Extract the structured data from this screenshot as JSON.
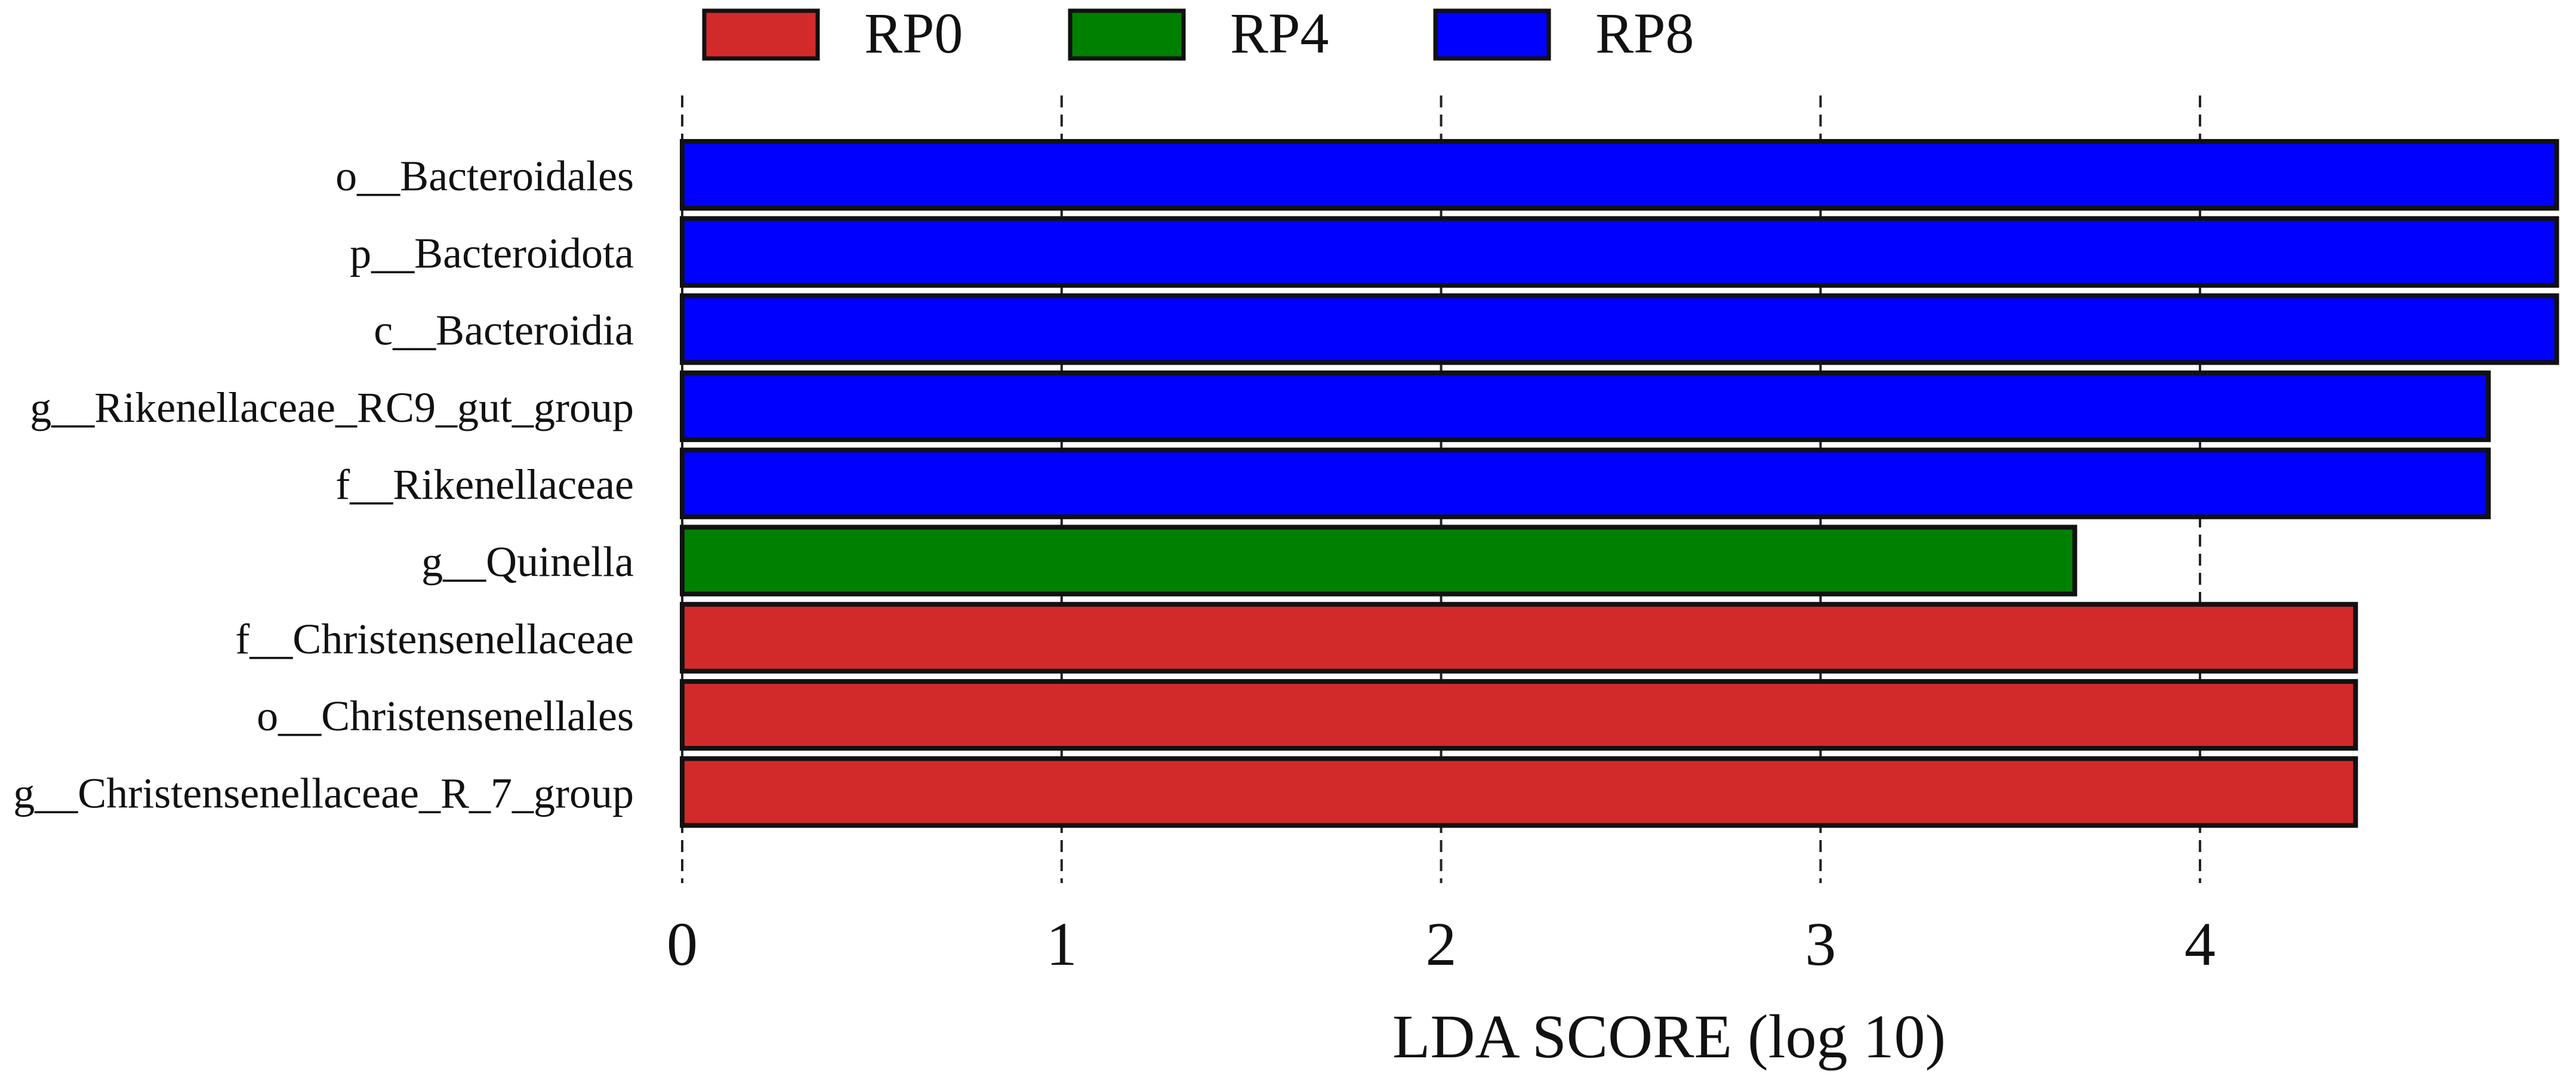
{
  "chart_data": {
    "type": "bar",
    "orientation": "horizontal",
    "xlabel": "LDA SCORE (log 10)",
    "ylabel": "",
    "xlim": [
      0,
      4.95
    ],
    "xticks": [
      "0",
      "1",
      "2",
      "3",
      "4"
    ],
    "grid": "vertical dashed lines at each tick",
    "legend_position": "top",
    "legend": [
      {
        "name": "RP0",
        "color": "#d22a2a"
      },
      {
        "name": "RP4",
        "color": "#008000"
      },
      {
        "name": "RP8",
        "color": "#0000ff"
      }
    ],
    "bars": [
      {
        "label": "o__Bacteroidales",
        "value": 4.94,
        "group": "RP8"
      },
      {
        "label": "p__Bacteroidota",
        "value": 4.94,
        "group": "RP8"
      },
      {
        "label": "c__Bacteroidia",
        "value": 4.94,
        "group": "RP8"
      },
      {
        "label": "g__Rikenellaceae_RC9_gut_group",
        "value": 4.76,
        "group": "RP8"
      },
      {
        "label": "f__Rikenellaceae",
        "value": 4.76,
        "group": "RP8"
      },
      {
        "label": "g__Quinella",
        "value": 3.67,
        "group": "RP4"
      },
      {
        "label": "f__Christensenellaceae",
        "value": 4.41,
        "group": "RP0"
      },
      {
        "label": "o__Christensenellales",
        "value": 4.41,
        "group": "RP0"
      },
      {
        "label": "g__Christensenellaceae_R_7_group",
        "value": 4.41,
        "group": "RP0"
      }
    ]
  }
}
